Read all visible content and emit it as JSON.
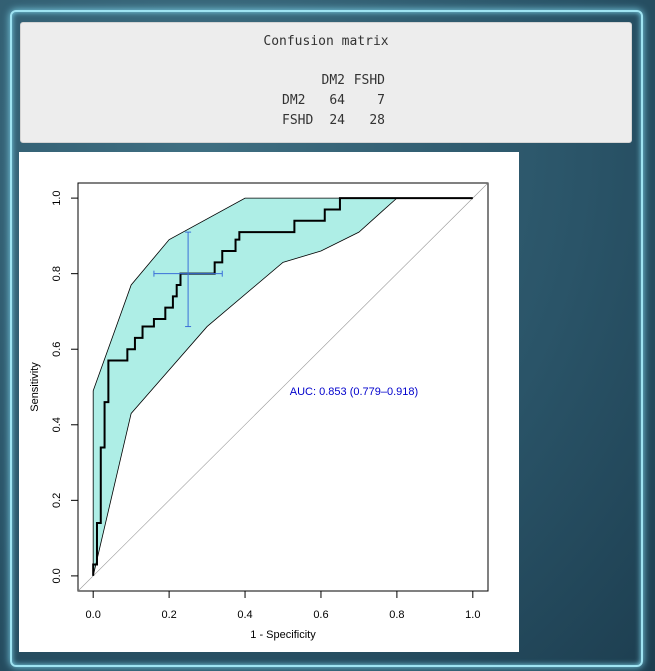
{
  "confusion_matrix": {
    "title": "Confusion matrix",
    "columns": [
      "DM2",
      "FSHD"
    ],
    "rows": [
      {
        "label": "DM2",
        "values": [
          64,
          7
        ]
      },
      {
        "label": "FSHD",
        "values": [
          24,
          28
        ]
      }
    ]
  },
  "chart_data": {
    "type": "line",
    "xlabel": "1 - Specificity",
    "ylabel": "Sensitivity",
    "annotation": "AUC: 0.853 (0.779–0.918)",
    "xlim": [
      -0.04,
      1.04
    ],
    "ylim": [
      -0.04,
      1.04
    ],
    "xticks": [
      {
        "value": 0,
        "label": "0.0"
      },
      0.2,
      0.4,
      0.6,
      0.8,
      {
        "value": 1,
        "label": "1.0"
      }
    ],
    "yticks": [
      {
        "value": 0,
        "label": "0.0"
      },
      0.2,
      0.4,
      0.6,
      0.8,
      {
        "value": 1,
        "label": "1.0"
      }
    ],
    "roc": {
      "color": "#000000",
      "x": [
        0,
        0,
        0.01,
        0.01,
        0.02,
        0.02,
        0.03,
        0.03,
        0.04,
        0.04,
        0.09,
        0.09,
        0.11,
        0.11,
        0.13,
        0.13,
        0.16,
        0.16,
        0.19,
        0.19,
        0.21,
        0.21,
        0.22,
        0.22,
        0.23,
        0.23,
        0.32,
        0.32,
        0.34,
        0.34,
        0.375,
        0.375,
        0.385,
        0.385,
        0.53,
        0.53,
        0.61,
        0.61,
        0.65,
        0.65,
        1.0
      ],
      "y": [
        0,
        0.03,
        0.03,
        0.14,
        0.14,
        0.34,
        0.34,
        0.46,
        0.46,
        0.57,
        0.57,
        0.6,
        0.6,
        0.63,
        0.63,
        0.66,
        0.66,
        0.68,
        0.68,
        0.71,
        0.71,
        0.74,
        0.74,
        0.77,
        0.77,
        0.8,
        0.8,
        0.83,
        0.83,
        0.86,
        0.86,
        0.89,
        0.89,
        0.91,
        0.91,
        0.94,
        0.94,
        0.97,
        0.97,
        1.0,
        1.0
      ]
    },
    "ci_band": {
      "color": "#aeeee6",
      "upper": {
        "x": [
          0,
          0.1,
          0.2,
          0.4,
          0.8,
          1.0
        ],
        "y": [
          0.49,
          0.77,
          0.89,
          1.0,
          1.0,
          1.0
        ]
      },
      "lower": {
        "x": [
          0,
          0.1,
          0.3,
          0.5,
          0.6,
          0.7,
          0.8
        ],
        "y": [
          0,
          0.43,
          0.66,
          0.83,
          0.86,
          0.91,
          1.0
        ]
      }
    },
    "ci_point": {
      "color": "#3a6fd8",
      "x": 0.25,
      "y": 0.8,
      "x_range": [
        0.16,
        0.34
      ],
      "y_range": [
        0.66,
        0.91
      ]
    }
  }
}
